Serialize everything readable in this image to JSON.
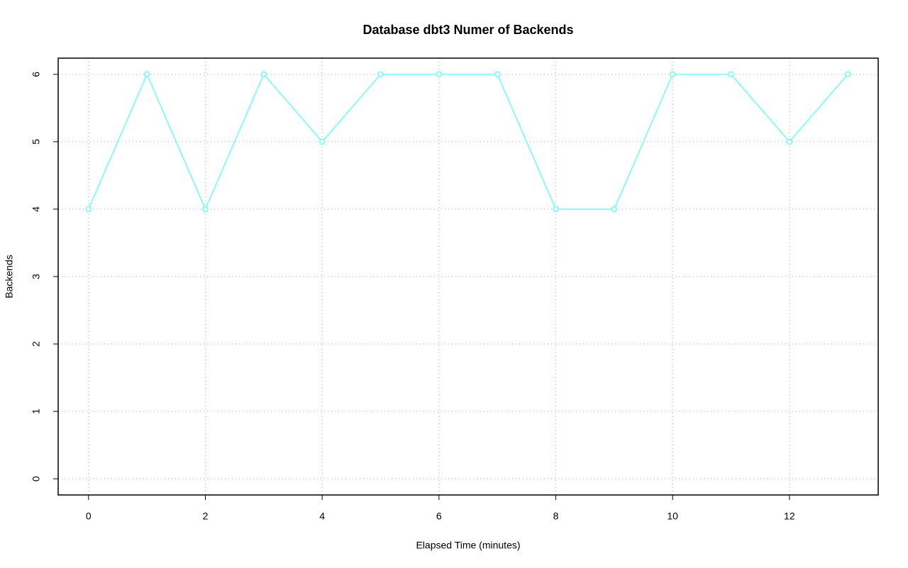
{
  "chart_data": {
    "type": "line",
    "title": "Database dbt3 Numer of Backends",
    "x_label": "Elapsed Time (minutes)",
    "y_label": "Backends",
    "x": [
      0,
      1,
      2,
      3,
      4,
      5,
      6,
      7,
      8,
      9,
      10,
      11,
      12,
      13
    ],
    "series": [
      {
        "name": "Backends",
        "color": "#66ffff",
        "values": [
          4,
          6,
          4,
          6,
          5,
          6,
          6,
          6,
          4,
          4,
          6,
          6,
          5,
          6
        ]
      }
    ],
    "xlim": [
      -0.52,
      13.52
    ],
    "xticks": [
      0,
      2,
      4,
      6,
      8,
      10,
      12
    ],
    "ylim": [
      -0.24,
      6.24
    ],
    "yticks": [
      0,
      1,
      2,
      3,
      4,
      5,
      6
    ],
    "grid": true
  }
}
